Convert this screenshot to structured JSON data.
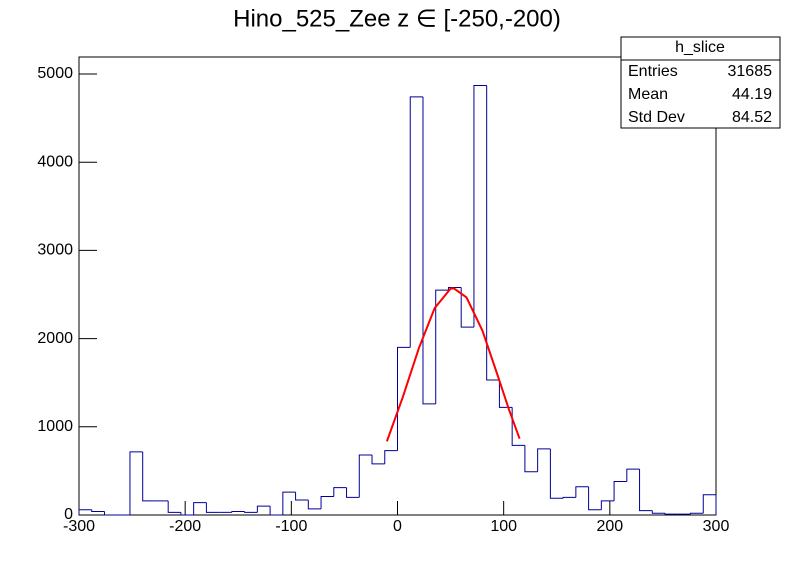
{
  "chart_data": {
    "type": "histogram",
    "title": "Hino_525_Zee z  ∈ [-250,-200)",
    "bins": [
      -300,
      -288,
      -276,
      -264,
      -252,
      -240,
      -228,
      -216,
      -204,
      -192,
      -180,
      -168,
      -156,
      -144,
      -132,
      -120,
      -108,
      -96,
      -84,
      -72,
      -60,
      -48,
      -36,
      -24,
      -12,
      0,
      12,
      24,
      36,
      48,
      60,
      72,
      84,
      96,
      108,
      120,
      132,
      144,
      156,
      168,
      180,
      192,
      204,
      216,
      228,
      240,
      252,
      264,
      276,
      288,
      300
    ],
    "values": [
      60,
      40,
      0,
      0,
      715,
      160,
      160,
      30,
      0,
      140,
      30,
      30,
      40,
      30,
      100,
      0,
      260,
      170,
      70,
      210,
      310,
      200,
      680,
      580,
      730,
      1900,
      4740,
      1260,
      2550,
      2580,
      2130,
      4870,
      1530,
      1220,
      790,
      490,
      750,
      190,
      200,
      320,
      60,
      160,
      380,
      520,
      50,
      20,
      10,
      10,
      20,
      230
    ],
    "color": "#000099",
    "fit": {
      "color": "#ff0000",
      "x": [
        -10,
        5,
        20,
        35,
        50,
        53,
        65,
        80,
        95,
        105,
        115
      ],
      "values": [
        835,
        1337,
        1887,
        2345,
        2567,
        2570,
        2467,
        2090,
        1559,
        1195,
        865
      ]
    },
    "xlim": [
      -300,
      300
    ],
    "xticks": [
      -300,
      -200,
      -100,
      0,
      100,
      200,
      300
    ],
    "ylim": [
      0,
      5000
    ],
    "yticks": [
      0,
      1000,
      2000,
      3000,
      4000,
      5000
    ],
    "stats": {
      "title": "h_slice",
      "rows": [
        {
          "label": "Entries",
          "value": 31685
        },
        {
          "label": "Mean",
          "value": 44.19
        },
        {
          "label": "Std Dev",
          "value": 84.52
        }
      ]
    }
  }
}
